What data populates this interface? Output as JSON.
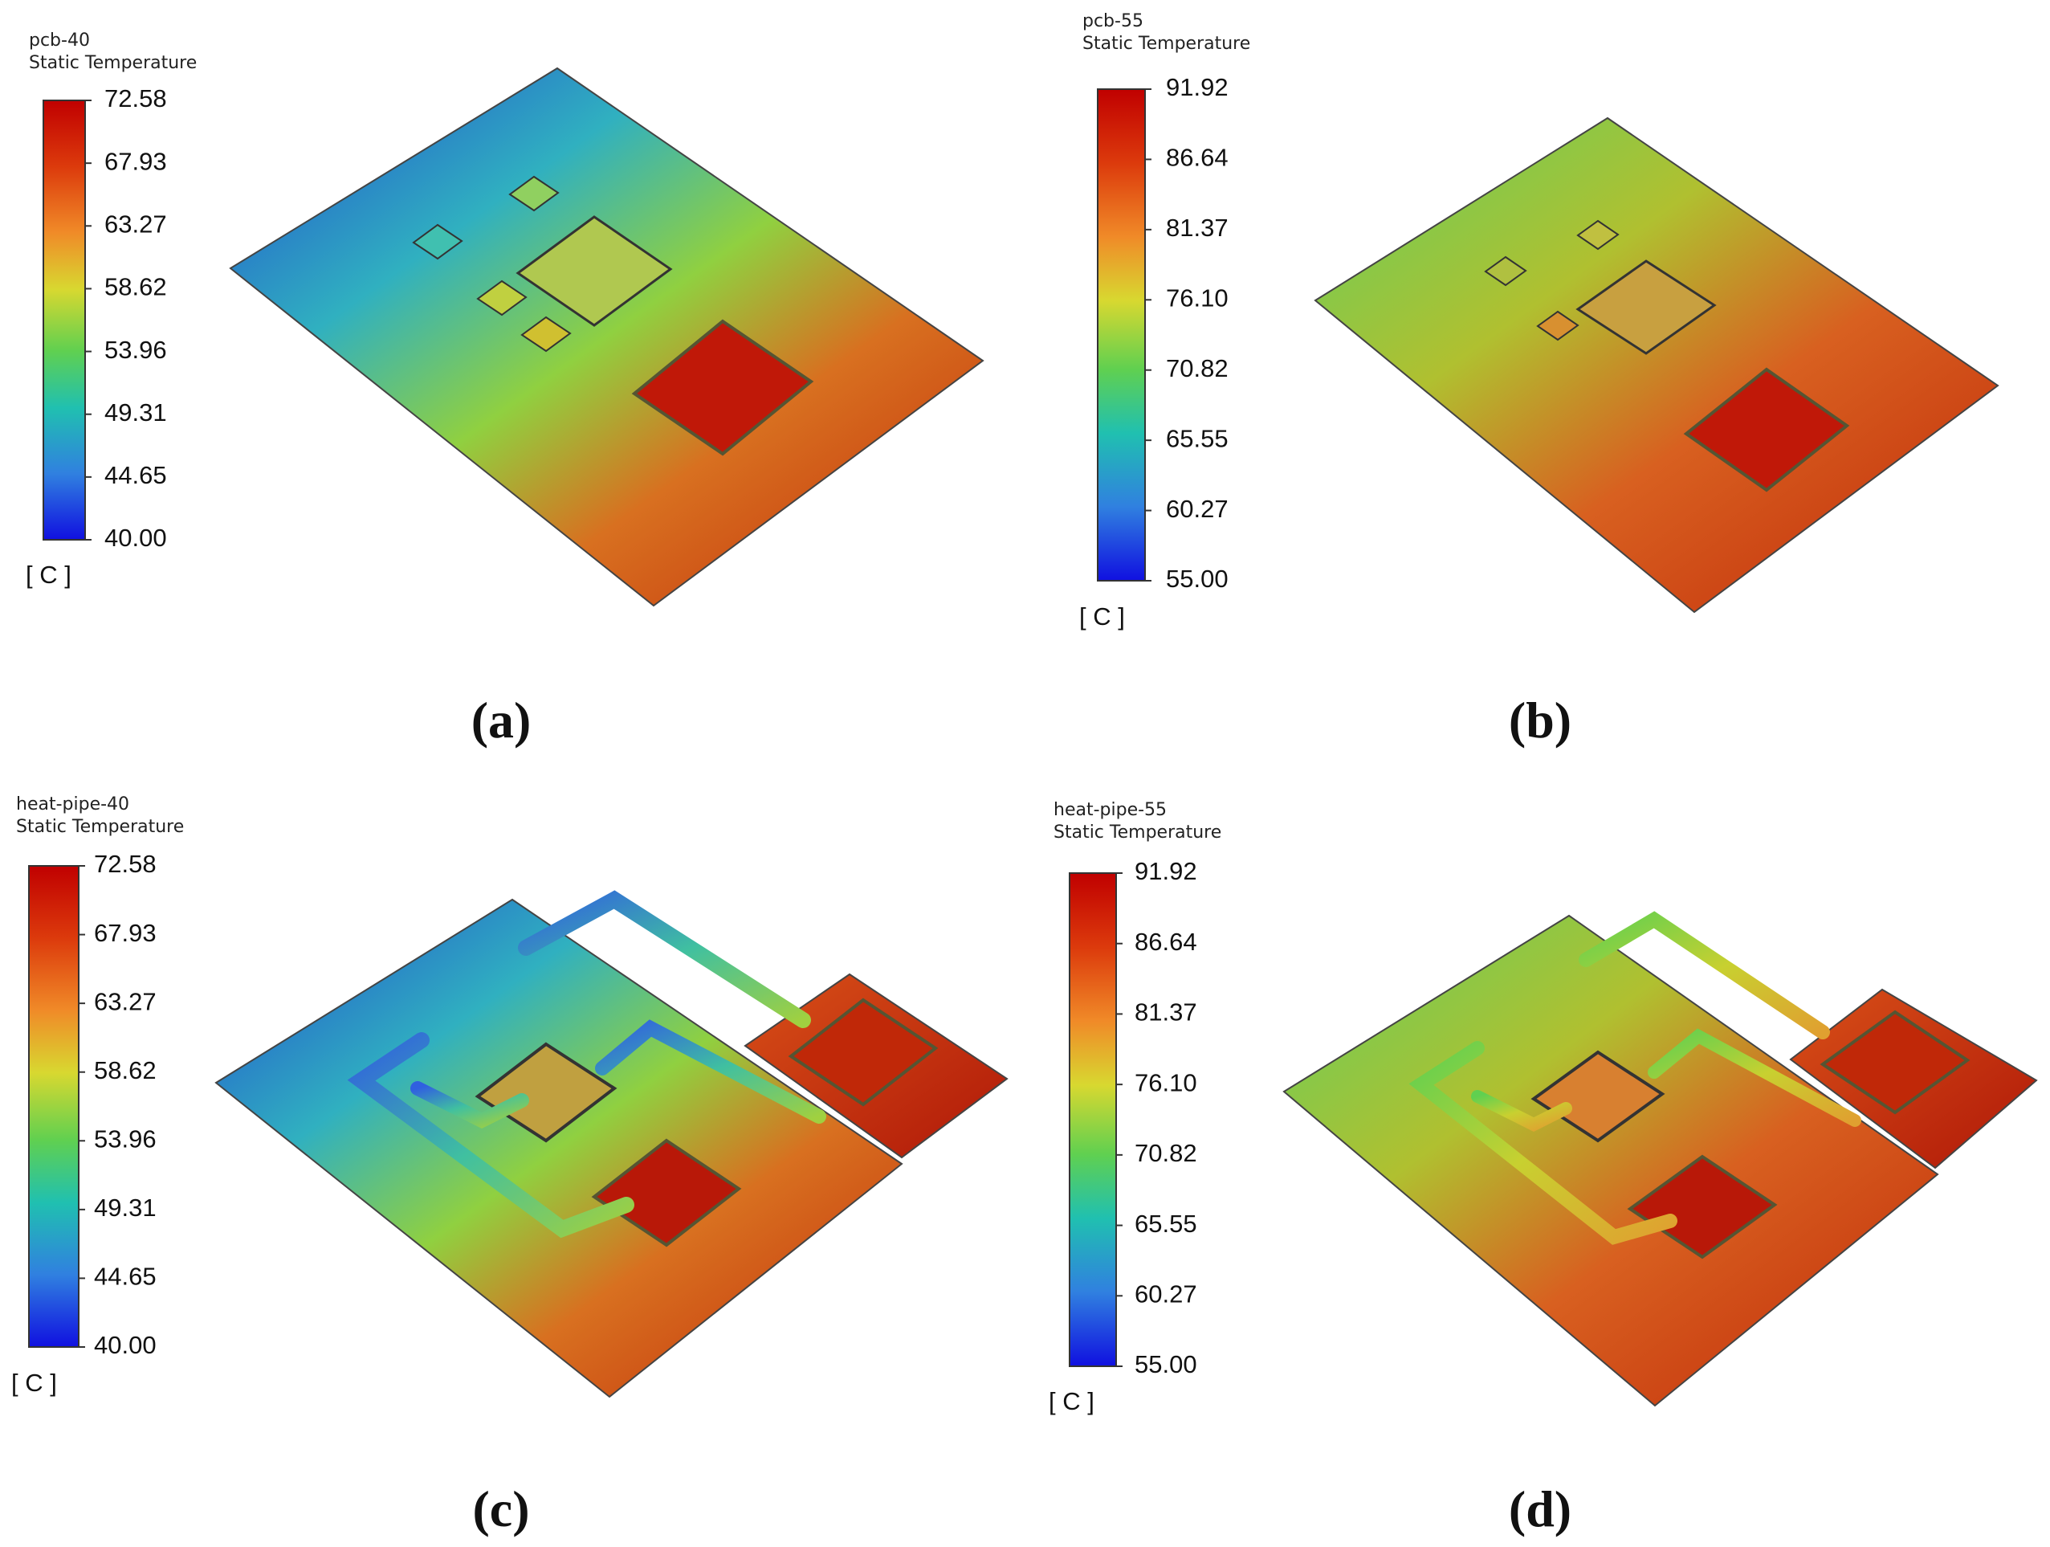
{
  "panels": [
    {
      "title": "pcb-40",
      "quantity": "Static Temperature",
      "ticks": [
        "72.58",
        "67.93",
        "63.27",
        "58.62",
        "53.96",
        "49.31",
        "44.65",
        "40.00"
      ],
      "unit": "[ C ]",
      "caption": "(a)"
    },
    {
      "title": "pcb-55",
      "quantity": "Static Temperature",
      "ticks": [
        "91.92",
        "86.64",
        "81.37",
        "76.10",
        "70.82",
        "65.55",
        "60.27",
        "55.00"
      ],
      "unit": "[ C ]",
      "caption": "(b)"
    },
    {
      "title": "heat-pipe-40",
      "quantity": "Static Temperature",
      "ticks": [
        "72.58",
        "67.93",
        "63.27",
        "58.62",
        "53.96",
        "49.31",
        "44.65",
        "40.00"
      ],
      "unit": "[ C ]",
      "caption": "(c)"
    },
    {
      "title": "heat-pipe-55",
      "quantity": "Static Temperature",
      "ticks": [
        "91.92",
        "86.64",
        "81.37",
        "76.10",
        "70.82",
        "65.55",
        "60.27",
        "55.00"
      ],
      "unit": "[ C ]",
      "caption": "(d)"
    }
  ]
}
